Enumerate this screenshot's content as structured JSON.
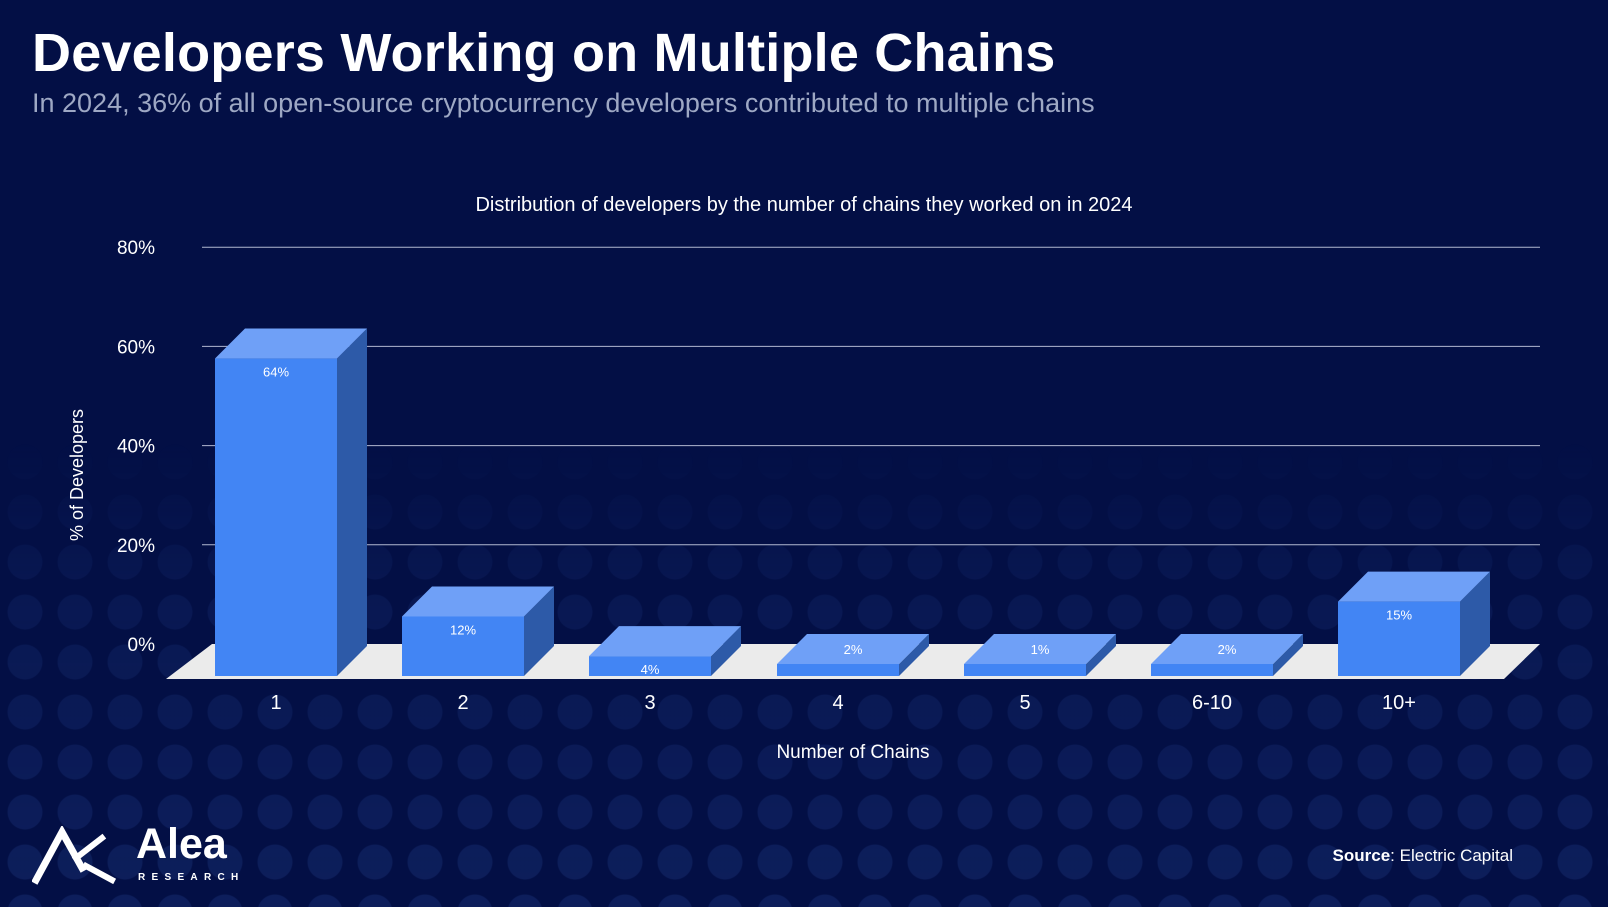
{
  "header": {
    "title": "Developers Working on Multiple Chains",
    "subtitle": "In 2024, 36% of all open-source cryptocurrency developers contributed to multiple chains"
  },
  "chart_data": {
    "type": "bar",
    "title": "Distribution of developers by the number of chains they worked on in 2024",
    "xlabel": "Number of Chains",
    "ylabel": "% of Developers",
    "categories": [
      "1",
      "2",
      "3",
      "4",
      "5",
      "6-10",
      "10+"
    ],
    "values": [
      64,
      12,
      4,
      2,
      1,
      2,
      15
    ],
    "value_labels": [
      "64%",
      "12%",
      "4%",
      "2%",
      "1%",
      "2%",
      "15%"
    ],
    "y_ticks": [
      0,
      20,
      40,
      60,
      80
    ],
    "y_tick_labels": [
      "0%",
      "20%",
      "40%",
      "60%",
      "80%"
    ],
    "ylim": [
      0,
      80
    ],
    "grid": true,
    "colors": {
      "bar_front": "#4285f4",
      "bar_top": "#6fa0f7",
      "bar_side": "#2d5aa8",
      "floor": "#ebebeb",
      "grid": "#c5cbe0"
    }
  },
  "footer": {
    "logo_name": "Alea",
    "logo_sub": "RESEARCH",
    "source_label": "Source",
    "source_value": ": Electric Capital"
  }
}
